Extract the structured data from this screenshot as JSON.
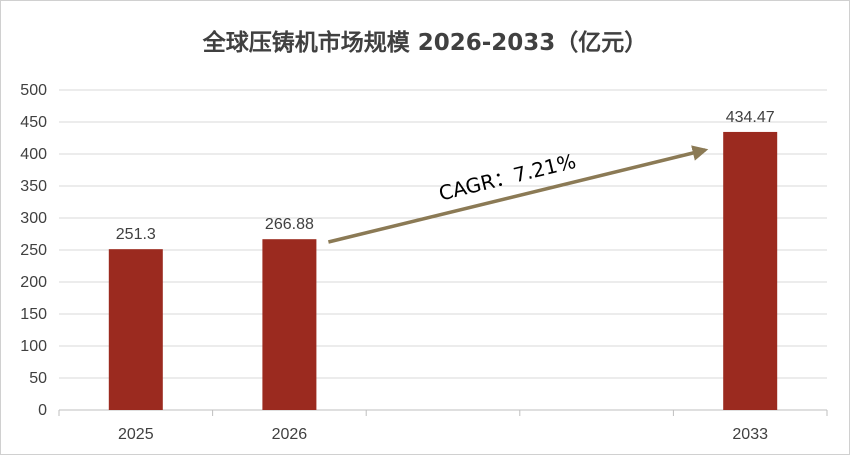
{
  "chart_data": {
    "type": "bar",
    "title": "全球压铸机市场规模 2026-2033（亿元）",
    "categories": [
      "2025",
      "2026",
      "",
      "",
      "2033"
    ],
    "values": [
      251.3,
      266.88,
      null,
      null,
      434.47
    ],
    "data_labels": [
      "251.3",
      "266.88",
      "",
      "",
      "434.47"
    ],
    "ylim": [
      0,
      500
    ],
    "yticks": [
      0,
      50,
      100,
      150,
      200,
      250,
      300,
      350,
      400,
      450,
      500
    ],
    "xlabel": "",
    "ylabel": "",
    "grid": true,
    "legend": "none",
    "bar_color": "#9b2a1f",
    "arrow_color": "#8b7a55",
    "annotation": "CAGR：7.21%"
  }
}
